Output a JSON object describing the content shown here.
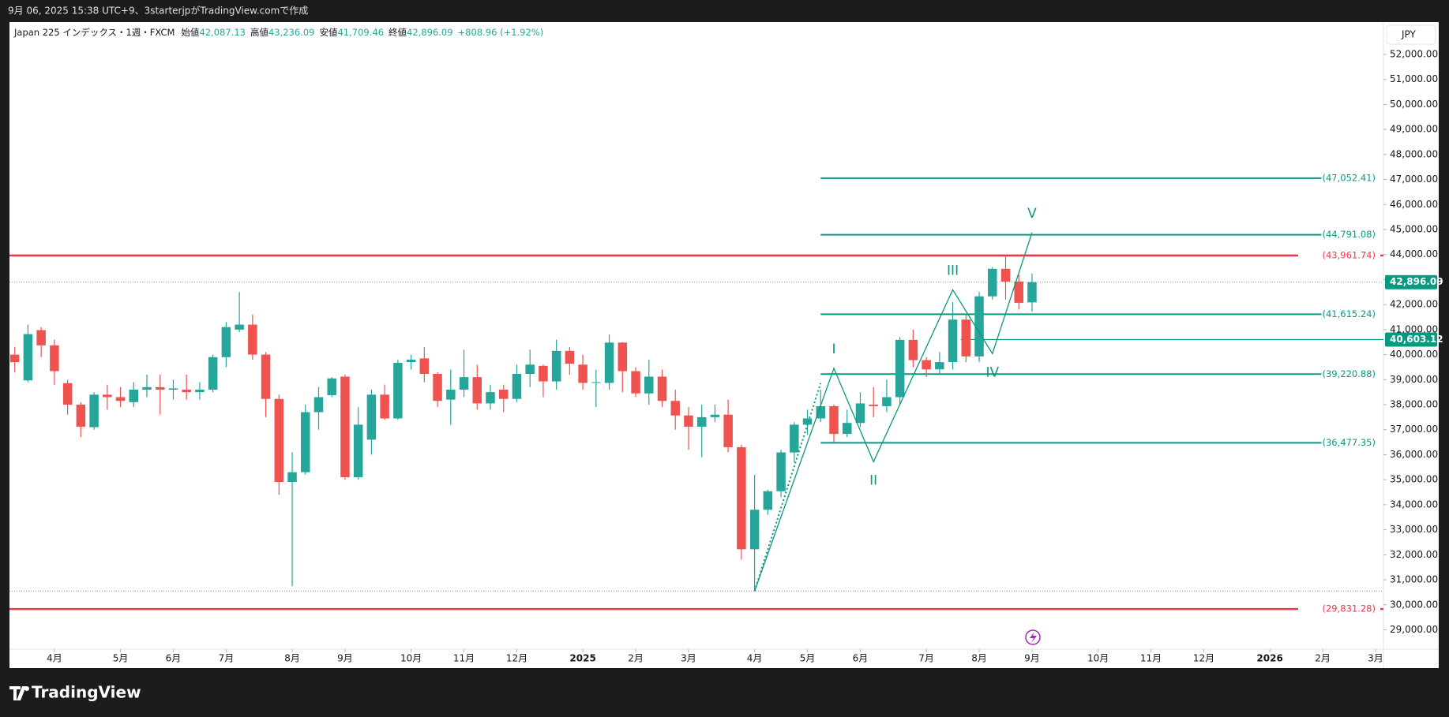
{
  "header": "9月 06, 2025 15:38 UTC+9、3starterjpがTradingView.comで作成",
  "brand": "TradingView",
  "chart_data": {
    "type": "candlestick",
    "symbol": "Japan 225 インデックス・1週・FXCM",
    "legend": [
      {
        "label": "始値",
        "value": "42,087.13"
      },
      {
        "label": "高値",
        "value": "43,236.09"
      },
      {
        "label": "安値",
        "value": "41,709.46"
      },
      {
        "label": "終値",
        "value": "42,896.09"
      }
    ],
    "change": "+808.96 (+1.92%)",
    "currency": "JPY",
    "up_color": "#26a69a",
    "down_color": "#ef5350",
    "candles": {
      "x": [
        0,
        1,
        2,
        3,
        4,
        5,
        6,
        7,
        8,
        9,
        10,
        11,
        12,
        13,
        14,
        15,
        16,
        17,
        18,
        19,
        20,
        21,
        22,
        23,
        24,
        25,
        26,
        27,
        28,
        29,
        30,
        31,
        32,
        33,
        34,
        35,
        36,
        37,
        38,
        39,
        40,
        41,
        42,
        43,
        44,
        45,
        46,
        47,
        48,
        49,
        50,
        51,
        52,
        53,
        54,
        55,
        56,
        57,
        58,
        59,
        60,
        61,
        62,
        63,
        64,
        65,
        66,
        67,
        68,
        69,
        70,
        71,
        72,
        73,
        74,
        75,
        76,
        77
      ],
      "open": [
        40000,
        38970,
        40980,
        40370,
        38860,
        38000,
        37100,
        38400,
        38300,
        38100,
        38600,
        38700,
        38600,
        38600,
        38500,
        38600,
        39900,
        41000,
        41200,
        40000,
        38230,
        34910,
        35300,
        37700,
        38380,
        39120,
        35100,
        36600,
        38400,
        37450,
        39700,
        39850,
        39230,
        38200,
        38600,
        39100,
        38050,
        38600,
        38230,
        39230,
        39550,
        38930,
        40150,
        39600,
        38870,
        38870,
        40480,
        39340,
        38450,
        39120,
        38150,
        37570,
        37120,
        37500,
        37600,
        36300,
        32220,
        33800,
        34540,
        36090,
        37200,
        37450,
        37940,
        36830,
        37270,
        38000,
        37940,
        38300,
        40590,
        39780,
        39410,
        39700,
        41400,
        39930,
        42330,
        43430,
        42920,
        42087.13
      ],
      "high": [
        40300,
        41200,
        41100,
        40600,
        39000,
        38100,
        38500,
        38800,
        38700,
        38900,
        39200,
        39200,
        39000,
        39200,
        38900,
        40000,
        41300,
        42500,
        41600,
        40100,
        38400,
        36100,
        38000,
        38700,
        39100,
        39200,
        37900,
        38600,
        38800,
        39800,
        40000,
        40300,
        39300,
        39400,
        40200,
        39600,
        38800,
        38800,
        39600,
        40200,
        39600,
        40600,
        40300,
        40000,
        39400,
        40800,
        40500,
        39500,
        39800,
        39400,
        38600,
        37900,
        38000,
        38000,
        38200,
        36400,
        35200,
        34600,
        36200,
        37300,
        37800,
        38600,
        38000,
        37800,
        38500,
        38700,
        39000,
        40700,
        41000,
        39900,
        40100,
        42100,
        41600,
        42500,
        43500,
        43960,
        43200,
        43236.09
      ],
      "low": [
        39300,
        38900,
        39900,
        38800,
        37600,
        36700,
        37000,
        37800,
        37900,
        37900,
        38300,
        37600,
        38200,
        38200,
        38200,
        38500,
        39500,
        40900,
        39800,
        37500,
        34400,
        30740,
        35200,
        37000,
        38300,
        35000,
        35000,
        36000,
        37400,
        37400,
        39400,
        38900,
        37900,
        37200,
        38300,
        37800,
        37800,
        37700,
        38100,
        38700,
        38300,
        38600,
        39200,
        38600,
        37900,
        38600,
        38500,
        38300,
        38000,
        37900,
        37000,
        36200,
        35900,
        37300,
        36100,
        31800,
        30550,
        33600,
        34300,
        35700,
        36800,
        37300,
        36500,
        36700,
        37100,
        37500,
        37700,
        38000,
        39500,
        39100,
        39200,
        39400,
        39700,
        39700,
        42200,
        42200,
        41800,
        41709.46
      ],
      "close": [
        39700,
        40820,
        40370,
        39340,
        38000,
        37120,
        38400,
        38300,
        38150,
        38600,
        38700,
        38600,
        38650,
        38500,
        38600,
        39900,
        41100,
        41200,
        40000,
        38230,
        34910,
        35300,
        37700,
        38300,
        39050,
        35100,
        37200,
        38400,
        37450,
        39670,
        39800,
        39230,
        38150,
        38600,
        39100,
        38050,
        38500,
        38230,
        39230,
        39600,
        38930,
        40150,
        39640,
        38870,
        38900,
        40480,
        39340,
        38450,
        39120,
        38150,
        37570,
        37120,
        37500,
        37600,
        36300,
        32220,
        33800,
        34540,
        36090,
        37200,
        37450,
        37940,
        36830,
        37270,
        38050,
        37940,
        38300,
        40590,
        39780,
        39410,
        39700,
        41400,
        39930,
        42330,
        43430,
        42920,
        42070,
        42896.09
      ]
    },
    "xlim": [
      -0.4,
      103.6
    ],
    "xticks": [
      {
        "value": 3,
        "label": "4月"
      },
      {
        "value": 8,
        "label": "5月"
      },
      {
        "value": 12,
        "label": "6月"
      },
      {
        "value": 16,
        "label": "7月"
      },
      {
        "value": 21,
        "label": "8月"
      },
      {
        "value": 25,
        "label": "9月"
      },
      {
        "value": 30,
        "label": "10月"
      },
      {
        "value": 34,
        "label": "11月"
      },
      {
        "value": 38,
        "label": "12月"
      },
      {
        "value": 43,
        "label": "2025",
        "bold": true
      },
      {
        "value": 47,
        "label": "2月"
      },
      {
        "value": 51,
        "label": "3月"
      },
      {
        "value": 56,
        "label": "4月"
      },
      {
        "value": 60,
        "label": "5月"
      },
      {
        "value": 64,
        "label": "6月"
      },
      {
        "value": 69,
        "label": "7月"
      },
      {
        "value": 73,
        "label": "8月"
      },
      {
        "value": 77,
        "label": "9月"
      },
      {
        "value": 82,
        "label": "10月"
      },
      {
        "value": 86,
        "label": "11月"
      },
      {
        "value": 90,
        "label": "12月"
      },
      {
        "value": 95,
        "label": "2026",
        "bold": true
      },
      {
        "value": 99,
        "label": "2月"
      },
      {
        "value": 103,
        "label": "3月"
      }
    ],
    "ylim": [
      28227,
      53292
    ],
    "yticks": [
      {
        "value": 29000,
        "label": "29,000.00"
      },
      {
        "value": 30000,
        "label": "30,000.00"
      },
      {
        "value": 31000,
        "label": "31,000.00"
      },
      {
        "value": 32000,
        "label": "32,000.00"
      },
      {
        "value": 33000,
        "label": "33,000.00"
      },
      {
        "value": 34000,
        "label": "34,000.00"
      },
      {
        "value": 35000,
        "label": "35,000.00"
      },
      {
        "value": 36000,
        "label": "36,000.00"
      },
      {
        "value": 37000,
        "label": "37,000.00"
      },
      {
        "value": 38000,
        "label": "38,000.00"
      },
      {
        "value": 39000,
        "label": "39,000.00"
      },
      {
        "value": 40000,
        "label": "40,000.00"
      },
      {
        "value": 41000,
        "label": "41,000.00"
      },
      {
        "value": 42000,
        "label": "42,000.00"
      },
      {
        "value": 43000,
        "label": "43,000.00"
      },
      {
        "value": 44000,
        "label": "44,000.00"
      },
      {
        "value": 45000,
        "label": "45,000.00"
      },
      {
        "value": 46000,
        "label": "46,000.00"
      },
      {
        "value": 47000,
        "label": "47,000.00"
      },
      {
        "value": 48000,
        "label": "48,000.00"
      },
      {
        "value": 49000,
        "label": "49,000.00"
      },
      {
        "value": 50000,
        "label": "50,000.00"
      },
      {
        "value": 51000,
        "label": "51,000.00"
      },
      {
        "value": 52000,
        "label": "52,000.00"
      }
    ],
    "fib_color": "#089981",
    "fib_start": 61,
    "fib_end": 98.9,
    "fib_levels": [
      {
        "value": 47052.41,
        "label": "(47,052.41)"
      },
      {
        "value": 44791.08,
        "label": "(44,791.08)"
      },
      {
        "value": 41615.24,
        "label": "(41,615.24)"
      },
      {
        "value": 39220.88,
        "label": "(39,220.88)"
      },
      {
        "value": 36477.35,
        "label": "(36,477.35)"
      }
    ],
    "resistance_color": "#f23645",
    "resistance_levels": [
      {
        "value": 43961.74,
        "label": "(43,961.74)"
      },
      {
        "value": 29831.28,
        "label": "(29,831.28)"
      }
    ],
    "level_line": {
      "value": 40603.12,
      "label": "40,603.12",
      "start": 71.6
    },
    "price_tag": {
      "value": 42896.09,
      "label": "42,896.09"
    },
    "period_low": 30550,
    "wave_color": "#089981",
    "waves": {
      "x": [
        56,
        62,
        65,
        71,
        74,
        77
      ],
      "y": [
        30550,
        39450,
        35720,
        42590,
        40040,
        44880
      ],
      "labels": [
        null,
        "I",
        "II",
        "III",
        "IV",
        "V"
      ]
    },
    "dotted_line": {
      "x": [
        56,
        61
      ],
      "y": [
        30550,
        38860
      ]
    }
  }
}
